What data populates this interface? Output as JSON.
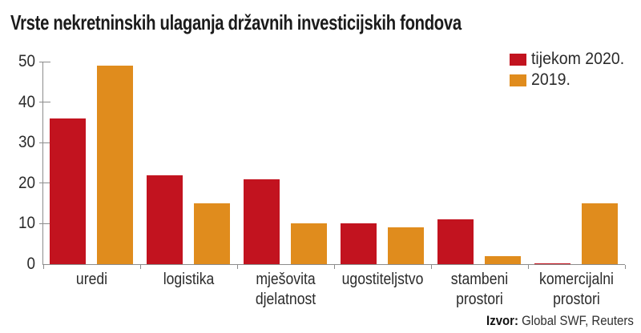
{
  "title": "Vrste nekretninskih ulaganja državnih investicijskih fondova",
  "colors": {
    "series_red": "#c2131f",
    "series_orange": "#e08c1d",
    "axis": "#8c8c8c",
    "text": "#2b2b2b"
  },
  "legend": [
    {
      "label": "tijekom 2020.",
      "color": "#c2131f"
    },
    {
      "label": "2019.",
      "color": "#e08c1d"
    }
  ],
  "source": {
    "label": "Izvor:",
    "text": "Global SWF, Reuters"
  },
  "chart_data": {
    "type": "bar",
    "title": "Vrste nekretninskih ulaganja državnih investicijskih fondova",
    "categories": [
      "uredi",
      "logistika",
      "mješovita djelatnost",
      "ugostiteljstvo",
      "stambeni prostori",
      "komercijalni prostori"
    ],
    "series": [
      {
        "name": "tijekom 2020.",
        "color": "#c2131f",
        "values": [
          36,
          22,
          21,
          10,
          11,
          0
        ]
      },
      {
        "name": "2019.",
        "color": "#e08c1d",
        "values": [
          49,
          15,
          10,
          9,
          2,
          15
        ]
      }
    ],
    "xlabel": "",
    "ylabel": "",
    "ylim": [
      0,
      50
    ],
    "yticks": [
      0,
      10,
      20,
      30,
      40,
      50
    ],
    "grid": false,
    "legend_position": "top-right"
  }
}
